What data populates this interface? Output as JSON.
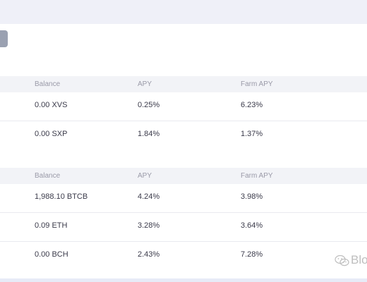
{
  "header": {
    "columns": {
      "balance": "Balance",
      "apy": "APY",
      "farm_apy": "Farm APY"
    }
  },
  "tables": [
    {
      "columns": {
        "balance": "Balance",
        "apy": "APY",
        "farm_apy": "Farm APY"
      },
      "rows": [
        {
          "balance": "0.00 XVS",
          "apy": "0.25%",
          "farm_apy": "6.23%"
        },
        {
          "balance": "0.00 SXP",
          "apy": "1.84%",
          "farm_apy": "1.37%"
        }
      ]
    },
    {
      "columns": {
        "balance": "Balance",
        "apy": "APY",
        "farm_apy": "Farm APY"
      },
      "rows": [
        {
          "balance": "1,988.10 BTCB",
          "apy": "4.24%",
          "farm_apy": "3.98%"
        },
        {
          "balance": "0.09 ETH",
          "apy": "3.28%",
          "farm_apy": "3.64%"
        },
        {
          "balance": "0.00 BCH",
          "apy": "2.43%",
          "farm_apy": "7.28%"
        }
      ]
    }
  ],
  "watermark": {
    "text": "Blo",
    "icon": "wechat-icon"
  },
  "colors": {
    "header_bg": "#f2f3f7",
    "top_band": "#eff0f8",
    "tag_button": "#9aa1b1"
  }
}
